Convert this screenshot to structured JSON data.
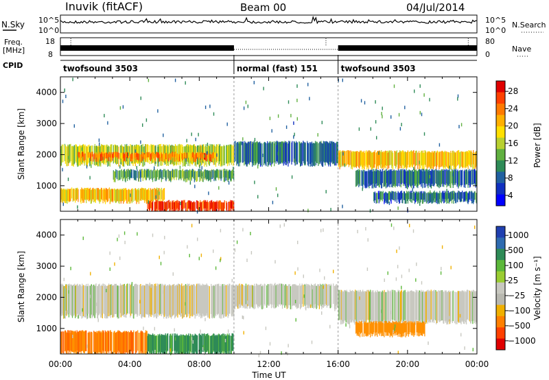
{
  "header": {
    "station": "Inuvik (fitACF)",
    "beam": "Beam 00",
    "date": "04/Jul/2014"
  },
  "top_panels": {
    "nsky_label": "N.Sky",
    "nsky_ticks": [
      "10^5",
      "10^0"
    ],
    "nsearch_label": "N.Search",
    "freq_label_1": "Freq.",
    "freq_label_2": "[MHz]",
    "freq_ticks": [
      "18",
      "8"
    ],
    "nave_ticks": [
      "80",
      "0"
    ],
    "nave_label": "Nave",
    "cpid_label": "CPID",
    "cpid_segments": [
      {
        "label": "twofsound 3503",
        "start_hour": 0,
        "end_hour": 10
      },
      {
        "label": "normal (fast) 151",
        "start_hour": 10,
        "end_hour": 16
      },
      {
        "label": "twofsound 3503",
        "start_hour": 16,
        "end_hour": 24
      }
    ]
  },
  "colorbars": {
    "power": {
      "label": "Power [dB]",
      "ticks": [
        "28",
        "24",
        "20",
        "16",
        "12",
        "8",
        "4"
      ],
      "colors": [
        "#e00000",
        "#ff4000",
        "#ff7a00",
        "#ffb000",
        "#ffe000",
        "#b8d030",
        "#60b040",
        "#2e8b57",
        "#2060a0",
        "#1030c0",
        "#0000ff"
      ]
    },
    "velocity": {
      "label": "Velocity [m s⁻¹]",
      "ticks": [
        "1000",
        "500",
        "100",
        "25",
        "−25",
        "−100",
        "−500",
        "−1000"
      ],
      "colors": [
        "#2040b0",
        "#2e6bb0",
        "#2e8b57",
        "#5cb83a",
        "#9acd32",
        "#c8c8c0",
        "#b8b8b0",
        "#f0b000",
        "#ff8000",
        "#ff4000",
        "#e00000"
      ]
    }
  },
  "chart_data": [
    {
      "type": "heatmap",
      "title": "Power",
      "ylabel": "Slant Range [km]",
      "xlabel": "Time UT",
      "xlim_hours": [
        0,
        24
      ],
      "ylim_km": [
        180,
        4500
      ],
      "yticks": [
        1000,
        2000,
        3000,
        4000
      ],
      "xticks": [
        "00:00",
        "04:00",
        "08:00",
        "12:00",
        "16:00",
        "20:00",
        "00:00"
      ],
      "colorbar_ticks_dB": [
        4,
        8,
        12,
        16,
        20,
        24,
        28
      ],
      "bands": [
        {
          "t0": 0,
          "t1": 10,
          "r0": 1700,
          "r1": 2300,
          "dB": 14
        },
        {
          "t0": 1,
          "t1": 9,
          "r0": 1850,
          "r1": 2050,
          "dB": 22
        },
        {
          "t0": 0,
          "t1": 6,
          "r0": 500,
          "r1": 900,
          "dB": 18
        },
        {
          "t0": 5,
          "t1": 10,
          "r0": 200,
          "r1": 500,
          "dB": 26
        },
        {
          "t0": 3,
          "t1": 10,
          "r0": 1200,
          "r1": 1500,
          "dB": 10
        },
        {
          "t0": 10,
          "t1": 16,
          "r0": 1700,
          "r1": 2400,
          "dB": 6
        },
        {
          "t0": 16,
          "t1": 24,
          "r0": 1600,
          "r1": 2100,
          "dB": 18
        },
        {
          "t0": 17,
          "t1": 24,
          "r0": 1000,
          "r1": 1500,
          "dB": 6
        },
        {
          "t0": 18,
          "t1": 24,
          "r0": 500,
          "r1": 800,
          "dB": 6
        }
      ]
    },
    {
      "type": "heatmap",
      "title": "Velocity",
      "ylabel": "Slant Range [km]",
      "xlabel": "Time UT",
      "xlim_hours": [
        0,
        24
      ],
      "ylim_km": [
        180,
        4500
      ],
      "yticks": [
        1000,
        2000,
        3000,
        4000
      ],
      "xticks": [
        "00:00",
        "04:00",
        "08:00",
        "12:00",
        "16:00",
        "20:00",
        "00:00"
      ],
      "colorbar_ticks_ms": [
        1000,
        500,
        100,
        25,
        -25,
        -100,
        -500,
        -1000
      ],
      "bands": [
        {
          "t0": 0,
          "t1": 10,
          "r0": 1400,
          "r1": 2400,
          "v": 0
        },
        {
          "t0": 0,
          "t1": 5,
          "r0": 200,
          "r1": 900,
          "v": -300
        },
        {
          "t0": 5,
          "t1": 10,
          "r0": 200,
          "r1": 800,
          "v": 80
        },
        {
          "t0": 10,
          "t1": 16,
          "r0": 1700,
          "r1": 2400,
          "v": 0
        },
        {
          "t0": 16,
          "t1": 24,
          "r0": 1200,
          "r1": 2200,
          "v": 0
        },
        {
          "t0": 17,
          "t1": 21,
          "r0": 800,
          "r1": 1200,
          "v": -200
        }
      ]
    }
  ]
}
